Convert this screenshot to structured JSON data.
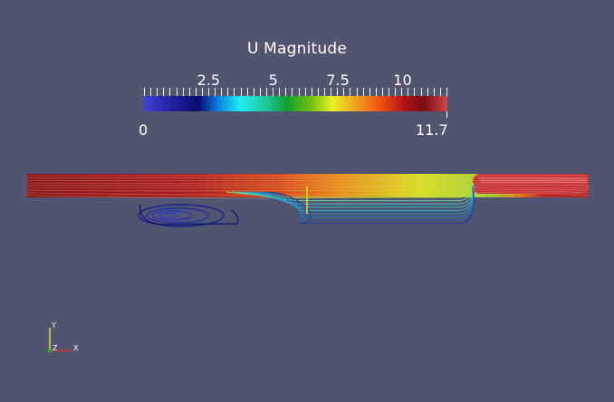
{
  "window": {
    "background": "#525570"
  },
  "colorbar": {
    "title": "U Magnitude",
    "min_label": "0",
    "max_label": "11.7",
    "range": [
      0,
      11.7
    ],
    "tick_labels": [
      "2.5",
      "5",
      "7.5",
      "10"
    ],
    "tick_values": [
      2.5,
      5,
      7.5,
      10
    ],
    "colormap": "rainbow",
    "colormap_stops": [
      "#3b3bd2",
      "#1d1d8a",
      "#0a0a78",
      "#0094e6",
      "#18f0f0",
      "#18d0a0",
      "#16a83a",
      "#6aba14",
      "#e8f018",
      "#f0a020",
      "#f05a10",
      "#b01018",
      "#7a1010",
      "#c8383c"
    ]
  },
  "scene": {
    "description_icon": "streamline-flow-render",
    "flow_colors": {
      "high": "#c0282c",
      "mid_high": "#e07020",
      "mid": "#e8e020",
      "low": "#20c0c0",
      "vortex": "#1a2090"
    }
  },
  "orientation_axes": {
    "x_label": "X",
    "y_label": "Y",
    "z_label": "Z",
    "x_color": "#d03030",
    "y_color": "#e8e030",
    "z_color": "#30b030"
  }
}
